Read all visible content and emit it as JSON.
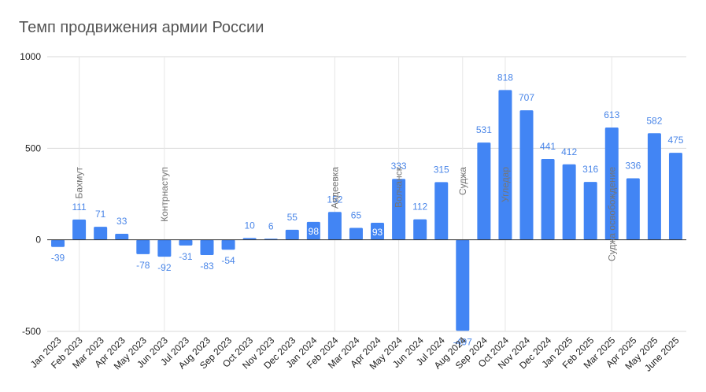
{
  "chart_data": {
    "type": "bar",
    "title": "Темп продвижения армии России",
    "xlabel": "",
    "ylabel": "",
    "ylim": [
      -500,
      1000
    ],
    "yticks": [
      "-500",
      "0",
      "500",
      "1000"
    ],
    "grid": true,
    "color": "#4285f4",
    "label_color": "#4a86e8",
    "categories": [
      "Jan 2023",
      "Feb 2023",
      "Mar 2023",
      "Apr 2023",
      "May 2023",
      "Jun 2023",
      "Jul 2023",
      "Aug 2023",
      "Sep 2023",
      "Oct 2023",
      "Nov 2023",
      "Dec 2023",
      "Jan 2024",
      "Feb 2024",
      "Mar 2024",
      "Apr 2024",
      "May 2024",
      "Jun 2024",
      "Jul 2024",
      "Aug 2024",
      "Sep 2024",
      "Oct 2024",
      "Nov 2024",
      "Dec 2024",
      "Jan 2025",
      "Feb 2025",
      "Mar 2025",
      "Apr 2025",
      "May 2025",
      "June 2025"
    ],
    "values": [
      -39,
      111,
      71,
      33,
      -78,
      -92,
      -31,
      -83,
      -54,
      10,
      6,
      55,
      98,
      152,
      65,
      93,
      333,
      112,
      315,
      -497,
      531,
      818,
      707,
      441,
      412,
      316,
      613,
      336,
      582,
      475
    ],
    "labels": [
      "-39",
      "111",
      "71",
      "33",
      "-78",
      "-92",
      "-31",
      "-83",
      "-54",
      "10",
      "6",
      "55",
      "98",
      "152",
      "65",
      "93",
      "333",
      "112",
      "315",
      "-497",
      "531",
      "818",
      "707",
      "441",
      "412",
      "316",
      "613",
      "336",
      "582",
      "475"
    ],
    "annotations": [
      {
        "index": 1,
        "text": "Бахмут"
      },
      {
        "index": 5,
        "text": "Контрнаступ"
      },
      {
        "index": 13,
        "text": "Авдеевка"
      },
      {
        "index": 16,
        "text": "Волчанск"
      },
      {
        "index": 19,
        "text": "Суджа"
      },
      {
        "index": 21,
        "text": "Угледар"
      },
      {
        "index": 26,
        "text": "Суджа освобождение"
      }
    ]
  }
}
